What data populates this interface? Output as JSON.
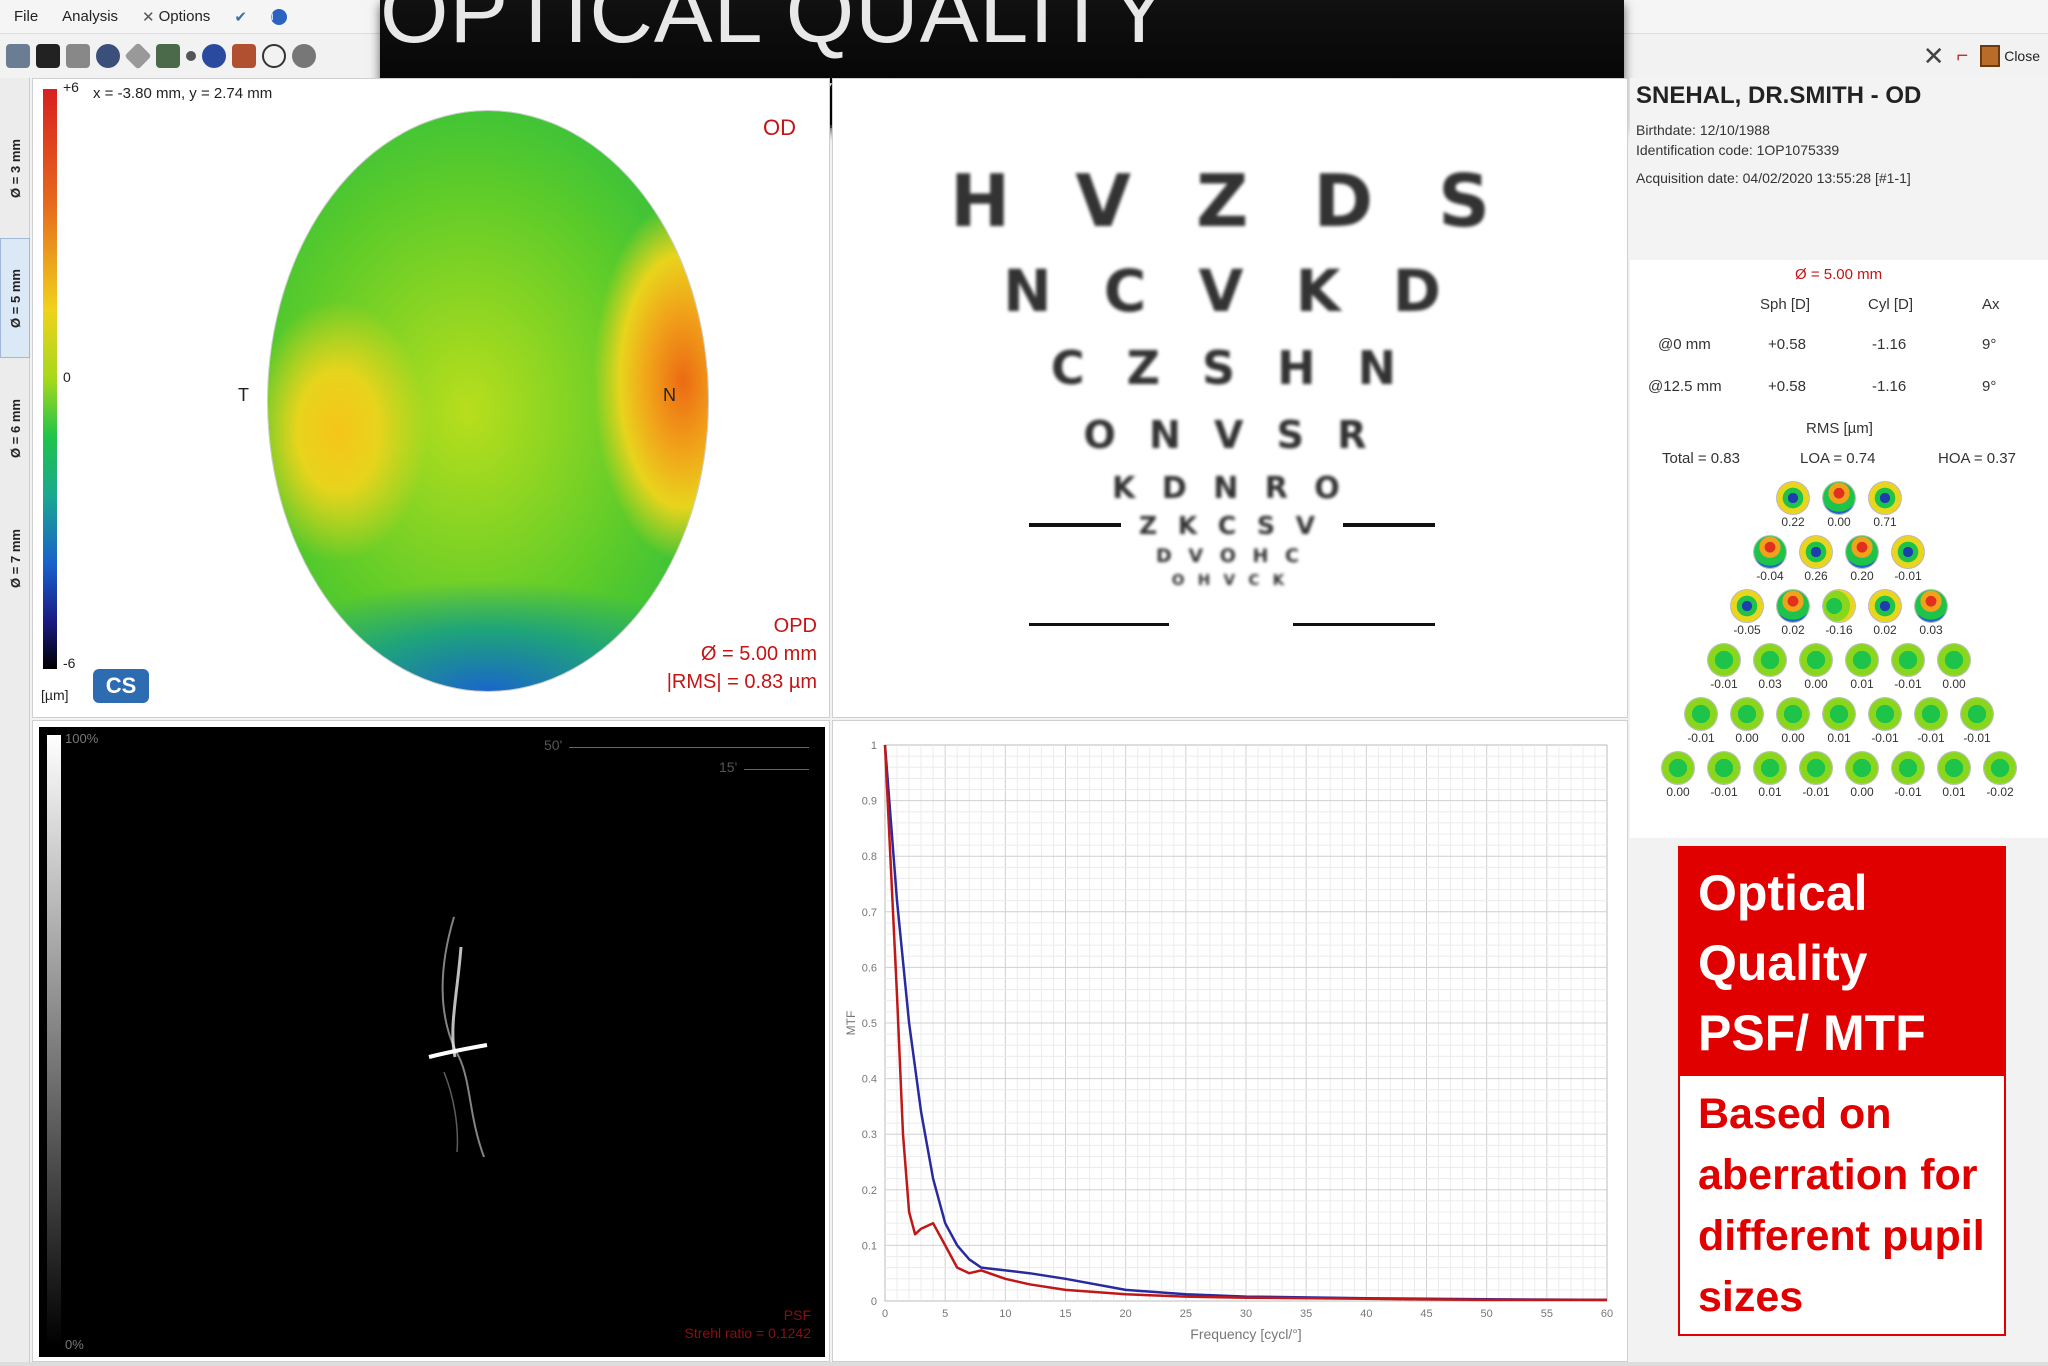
{
  "menu": {
    "file": "File",
    "analysis": "Analysis",
    "options": "Options"
  },
  "toolbar_right": {
    "close": "Close"
  },
  "banner": {
    "title": "OPTICAL QUALITY SUMMARY"
  },
  "left_tabs": [
    "Ø = 3 mm",
    "Ø = 5 mm",
    "Ø = 6 mm",
    "Ø = 7 mm"
  ],
  "map": {
    "coords": "x = -3.80 mm, y = 2.74 mm",
    "scale_top": "+6",
    "scale_mid": "0",
    "scale_bottom": "-6",
    "unit": "[µm]",
    "eye": "OD",
    "label_t": "T",
    "label_n": "N",
    "logo": "CS",
    "caption1": "OPD",
    "caption2": "Ø = 5.00 mm",
    "caption3": "|RMS| = 0.83 µm"
  },
  "acuity_chart": {
    "rows": [
      "H V Z D S",
      "N C V K D",
      "C Z S H N",
      "O N V S R",
      "K D N R O",
      "Z K C S V",
      "D V O H C",
      "O H V C K"
    ]
  },
  "psf": {
    "scale_top": "100%",
    "scale_bottom": "0%",
    "mark50": "50'",
    "mark15": "15'",
    "label": "PSF",
    "strehl": "Strehl ratio = 0.1242"
  },
  "chart_data": {
    "type": "line",
    "xlabel": "Frequency [cycl/°]",
    "ylabel": "MTF",
    "xlim": [
      0,
      60
    ],
    "ylim": [
      0,
      1
    ],
    "grid": true,
    "x_ticks": [
      "0",
      "5",
      "10",
      "15",
      "20",
      "25",
      "30",
      "35",
      "40",
      "45",
      "50",
      "55",
      "60"
    ],
    "y_ticks": [
      "0",
      "0.1",
      "0.2",
      "0.3",
      "0.4",
      "0.5",
      "0.6",
      "0.7",
      "0.8",
      "0.9",
      "1"
    ],
    "series": [
      {
        "color": "#2a2aa0",
        "x": [
          0,
          1,
          2,
          3,
          4,
          5,
          6,
          7,
          8,
          10,
          12,
          15,
          20,
          25,
          30,
          40,
          50,
          60
        ],
        "y": [
          1.0,
          0.72,
          0.5,
          0.34,
          0.22,
          0.14,
          0.1,
          0.075,
          0.06,
          0.055,
          0.05,
          0.04,
          0.02,
          0.012,
          0.008,
          0.005,
          0.003,
          0.002
        ]
      },
      {
        "color": "#c01818",
        "x": [
          0,
          1,
          1.5,
          2,
          2.5,
          3,
          4,
          5,
          6,
          7,
          8,
          10,
          12,
          15,
          20,
          25,
          30,
          40,
          50,
          60
        ],
        "y": [
          1.0,
          0.55,
          0.3,
          0.16,
          0.12,
          0.13,
          0.14,
          0.1,
          0.06,
          0.05,
          0.055,
          0.04,
          0.03,
          0.02,
          0.012,
          0.008,
          0.006,
          0.004,
          0.002,
          0.002
        ]
      }
    ]
  },
  "patient": {
    "name": "SNEHAL, DR.SMITH - OD",
    "birthdate": "Birthdate: 12/10/1988",
    "id": "Identification code: 1OP1075339",
    "acq": "Acquisition date: 04/02/2020 13:55:28 [#1-1]"
  },
  "refraction": {
    "pupil": "Ø = 5.00 mm",
    "headers": [
      "Sph [D]",
      "Cyl [D]",
      "Ax"
    ],
    "rows": [
      {
        "label": "@0 mm",
        "sph": "+0.58",
        "cyl": "-1.16",
        "ax": "9°"
      },
      {
        "label": "@12.5 mm",
        "sph": "+0.58",
        "cyl": "-1.16",
        "ax": "9°"
      }
    ],
    "rms_title": "RMS [µm]",
    "total": "Total = 0.83",
    "loa": "LOA = 0.74",
    "hoa": "HOA = 0.37"
  },
  "zernike": [
    [
      "0.22",
      "0.00",
      "0.71"
    ],
    [
      "-0.04",
      "0.26",
      "0.20",
      "-0.01"
    ],
    [
      "-0.05",
      "0.02",
      "-0.16",
      "0.02",
      "0.03"
    ],
    [
      "-0.01",
      "0.03",
      "0.00",
      "0.01",
      "-0.01",
      "0.00"
    ],
    [
      "-0.01",
      "0.00",
      "0.00",
      "0.01",
      "-0.01",
      "-0.01",
      "-0.01"
    ],
    [
      "0.00",
      "-0.01",
      "0.01",
      "-0.01",
      "0.00",
      "-0.01",
      "0.01",
      "-0.02"
    ]
  ],
  "callout": {
    "title": "Optical Quality PSF/ MTF",
    "body": "Based on aberration for different pupil sizes"
  }
}
